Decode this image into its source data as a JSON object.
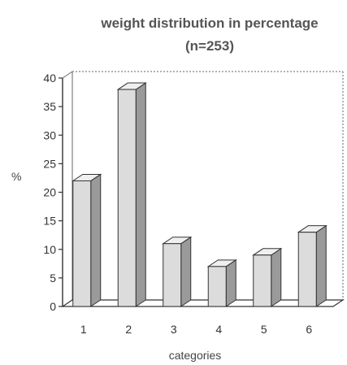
{
  "chart_data": {
    "type": "bar",
    "title": "weight distribution in percentage",
    "subtitle": "(n=253)",
    "xlabel": "categories",
    "ylabel": "%",
    "categories": [
      "1",
      "2",
      "3",
      "4",
      "5",
      "6"
    ],
    "values": [
      22,
      38,
      11,
      7,
      9,
      13
    ],
    "ylim": [
      0,
      40
    ],
    "yticks": [
      "0",
      "5",
      "10",
      "15",
      "20",
      "25",
      "30",
      "35",
      "40"
    ],
    "grid": false,
    "legend": "none",
    "colors": {
      "bar_front": "#dcdcdc",
      "bar_side": "#9a9a9a",
      "bar_top": "#efefef",
      "axis": "#333333",
      "frame": "#666666"
    }
  }
}
